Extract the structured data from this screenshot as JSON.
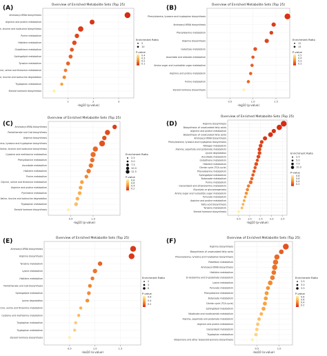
{
  "figure": {
    "panels": [
      {
        "letter": "(A)"
      },
      {
        "letter": "(B)"
      },
      {
        "letter": "(C)"
      },
      {
        "letter": "(D)"
      },
      {
        "letter": "(E)"
      },
      {
        "letter": "(F)"
      }
    ]
  },
  "colors": {
    "low": "#fff1a8",
    "mid": "#f9a03a",
    "high": "#d42a12",
    "grid": "#ececec",
    "frame": "#9a9a9a"
  },
  "chart_data": [
    {
      "type": "scatter",
      "title": "Overview of Enriched Metabolite Sets (Top 25)",
      "xlabel": "-log10 (p-value)",
      "xticks": [
        "1",
        "2",
        "3"
      ],
      "xlim": [
        0,
        3.6
      ],
      "grid": true,
      "legend_position": "right",
      "size_legend": {
        "title": "Enrichment Ratio",
        "labels": [
          "5",
          "10"
        ]
      },
      "color_legend": {
        "title": "P-value",
        "labels": [
          "0.4",
          "0.3",
          "0.2",
          "0.1"
        ]
      },
      "categories": [
        "Aminoacyl-tRNA biosynthesis",
        "Arginine and proline metabolism",
        "Valine, leucine and isoleucine biosynthesis",
        "Pyrine metabolism",
        "Histidine metabolism",
        "Glutathione metabolism",
        "Sphingolipid metabolism",
        "Tyrosine metabolism",
        "Glycine, serine and threonine metabolism",
        "Valine, leucine and isoleucine degradation",
        "Tryptophan metabolism",
        "Steroid hormone biosynthesis"
      ],
      "x": [
        3.35,
        1.95,
        1.5,
        1.35,
        1.25,
        1.15,
        1.1,
        1.0,
        0.9,
        0.85,
        0.75,
        0.45
      ],
      "size": [
        9,
        7,
        8,
        6,
        6,
        5,
        5,
        5,
        4,
        4,
        3,
        3
      ],
      "p_value": [
        0.001,
        0.02,
        0.03,
        0.05,
        0.06,
        0.08,
        0.09,
        0.1,
        0.14,
        0.16,
        0.2,
        0.4
      ]
    },
    {
      "type": "scatter",
      "title": "Overview of Enriched Metabolite Sets (Top 25)",
      "xlabel": "-log10 (p-value)",
      "xticks": [
        "0.5",
        "1.0",
        "1.5"
      ],
      "xlim": [
        0,
        1.8
      ],
      "grid": true,
      "legend_position": "right",
      "size_legend": {
        "title": "Enrichment Ratio",
        "labels": [
          "12",
          "15"
        ]
      },
      "color_legend": {
        "title": "P-value",
        "labels": [
          "0.5",
          "0.4",
          "0.3",
          "0.2"
        ]
      },
      "categories": [
        "Phenylalanine, tyrosine and tryptophan biosynthesis",
        "Aminoacyl-tRNA biosynthesis",
        "Phenylalanine metabolism",
        "Arginine biosynthesis",
        "Galactose metabolism",
        "Ascorbate and aldarate metabolism",
        "Amino sugar and nucleotide sugar metabolism",
        "Arginine and proline metabolism",
        "Purine metabolism",
        "Steroid hormone biosynthesis"
      ],
      "x": [
        1.75,
        1.45,
        1.4,
        1.3,
        1.05,
        1.0,
        0.98,
        0.95,
        0.9,
        0.8
      ],
      "size": [
        8,
        5,
        4,
        5,
        4,
        3,
        3,
        3,
        3,
        2
      ],
      "p_value": [
        0.02,
        0.04,
        0.05,
        0.06,
        0.09,
        0.1,
        0.11,
        0.12,
        0.13,
        0.5
      ]
    },
    {
      "type": "scatter",
      "title": "Overview of Enriched Metabolite Sets (Top 25)",
      "xlabel": "-log10 (p-value)",
      "xticks": [
        "0.5",
        "1.0"
      ],
      "xlim": [
        0,
        1.6
      ],
      "grid": true,
      "legend_position": "right",
      "size_legend": {
        "title": "Enrichment Ratio",
        "labels": [
          "2.5",
          "5.0",
          "7.5",
          "10.0",
          "12.5"
        ]
      },
      "color_legend": {
        "title": "P-value",
        "labels": [
          "0.8",
          "0.6",
          "0.4",
          "0.2"
        ]
      },
      "categories": [
        "Aminoacyl-tRNA biosynthesis",
        "Pantothenate and CoA biosynthesis",
        "Arginine biosynthesis",
        "Phenylalanine, tyrosine and tryptophan biosynthesis",
        "Valine, leucine and isoleucine biosynthesis",
        "Cysteine and methionine metabolism",
        "Phenylalanine metabolism",
        "Ascorbate metabolism",
        "Histidine metabolism",
        "Purine metabolism",
        "Glycine, serine and threonine metabolism",
        "Arginine and proline metabolism",
        "Pyrimidine metabolism",
        "Valine, leucine and isoleucine degradation",
        "Tryptophan metabolism",
        "Steroid hormone biosynthesis"
      ],
      "x": [
        1.48,
        1.32,
        1.25,
        1.2,
        1.05,
        1.0,
        0.98,
        0.95,
        0.9,
        0.85,
        0.75,
        0.72,
        0.7,
        0.65,
        0.62,
        0.45
      ],
      "size": [
        4,
        5,
        4,
        6,
        5,
        5,
        4,
        4,
        4,
        3,
        3,
        3,
        3,
        3,
        3,
        2
      ],
      "p_value": [
        0.03,
        0.05,
        0.06,
        0.06,
        0.09,
        0.1,
        0.1,
        0.11,
        0.12,
        0.14,
        0.18,
        0.19,
        0.2,
        0.22,
        0.24,
        0.35
      ]
    },
    {
      "type": "scatter",
      "title": "Overview of Enriched Metabolite Sets (Top 25)",
      "xlabel": "-log10 (p-value)",
      "xticks": [
        "0.5",
        "1.0",
        "1.5",
        "2.0",
        "2.5"
      ],
      "xlim": [
        0,
        2.7
      ],
      "grid": true,
      "legend_position": "right",
      "size_legend": {
        "title": "Enrichment Ratio",
        "labels": [
          "2.5",
          "5.0",
          "7.5",
          "10.0"
        ]
      },
      "color_legend": {
        "title": "P-value",
        "labels": [
          "0.8",
          "0.6",
          "0.4",
          "0.2"
        ]
      },
      "categories": [
        "Arginine biosynthesis",
        "Biosynthesis of unsaturated fatty acids",
        "Arginine and proline metabolism",
        "Biosynthesis of unsaturated fatty acids",
        "Aminoacyl-tRNA biosynthesis",
        "Phenylalanine, tyrosine and tryptophan biosynthesis",
        "Nitrogen metabolism",
        "Alanine, aspartate and glutamate metabolism",
        "Lysine degradation",
        "Ascorbate metabolism",
        "Glutathione metabolism",
        "Histidine metabolism",
        "Citrate cycle (TCA cycle)",
        "Phenylalanine metabolism",
        "Sphingolipid metabolism",
        "Butanoate metabolism",
        "Purine metabolism",
        "Glycerolipid and ethanolamine metabolism",
        "Glycolysis or gluconeogenesis",
        "Amino sugar and nucleotide sugar metabolism",
        "Pyruvate metabolism",
        "Arginine and proline metabolism",
        "Fatty acid biosynthesis",
        "Tyrosine metabolism",
        "Steroid hormone biosynthesis"
      ],
      "x": [
        2.55,
        2.35,
        2.1,
        1.95,
        1.7,
        1.55,
        1.5,
        1.45,
        1.45,
        1.4,
        1.35,
        1.3,
        1.25,
        1.2,
        1.15,
        1.1,
        1.05,
        0.95,
        0.9,
        0.85,
        0.8,
        0.75,
        0.7,
        0.65,
        0.5
      ],
      "size": [
        8,
        7,
        5,
        6,
        5,
        4,
        4,
        4,
        4,
        4,
        3,
        4,
        3,
        3,
        3,
        3,
        4,
        3,
        3,
        3,
        2,
        2,
        2,
        2,
        2
      ],
      "p_value": [
        0.003,
        0.005,
        0.008,
        0.01,
        0.02,
        0.03,
        0.03,
        0.04,
        0.04,
        0.04,
        0.05,
        0.05,
        0.06,
        0.06,
        0.07,
        0.08,
        0.09,
        0.11,
        0.12,
        0.14,
        0.16,
        0.18,
        0.2,
        0.22,
        0.32
      ]
    },
    {
      "type": "scatter",
      "title": "Overview of Enriched Metabolite Sets (Top 25)",
      "xlabel": "-log10 (p-value)",
      "xticks": [
        "0.5",
        "1.0",
        "1.5"
      ],
      "xlim": [
        0,
        1.9
      ],
      "grid": true,
      "legend_position": "right",
      "size_legend": {
        "title": "Enrichment Ratio",
        "labels": [
          "2",
          "4",
          "6"
        ]
      },
      "color_legend": {
        "title": "P-value",
        "labels": [
          "0.6",
          "0.4",
          "0.2"
        ]
      },
      "categories": [
        "Aminoacyl-tRNA biosynthesis",
        "Arginine biosynthesis",
        "Tyrosine metabolism",
        "Lysine metabolism",
        "Histidine metabolism",
        "Pantothenate and CoA biosynthesis",
        "Sphingolipid metabolism",
        "Lysine degradation",
        "Glycine, serine and threonine metabolism",
        "Cysteine and methionine metabolism",
        "Tryptophan metabolism",
        "Tryptophan metabolism",
        "Steroid hormone biosynthesis"
      ],
      "x": [
        1.75,
        1.72,
        1.1,
        1.0,
        0.95,
        0.9,
        0.88,
        0.85,
        0.72,
        0.68,
        0.62,
        0.6,
        0.5
      ],
      "size": [
        6,
        6,
        4,
        4,
        3,
        3,
        3,
        3,
        2,
        2,
        2,
        2,
        2
      ],
      "p_value": [
        0.02,
        0.02,
        0.08,
        0.1,
        0.11,
        0.12,
        0.13,
        0.14,
        0.19,
        0.21,
        0.24,
        0.25,
        0.32
      ]
    },
    {
      "type": "scatter",
      "title": "Overview of Enriched Metabolite Sets (Top 25)",
      "xlabel": "-log10 (p-value)",
      "xticks": [
        "0.5",
        "1.0"
      ],
      "xlim": [
        0,
        1.3
      ],
      "grid": true,
      "legend_position": "right",
      "size_legend": {
        "title": "Enrichment Ratio",
        "labels": [
          "2.5",
          "3.0",
          "3.5"
        ]
      },
      "color_legend": {
        "title": "P-value",
        "labels": [
          "0.8",
          "0.6",
          "0.4",
          "0.2"
        ]
      },
      "categories": [
        "Arginine biosynthesis",
        "Biosynthesis of unsaturated fatty acids",
        "Phenylalanine, tyrosine and tryptophan biosynthesis",
        "Riboflavin metabolism",
        "Aminoacyl-tRNA biosynthesis",
        "Histidine metabolism",
        "D-Glutamine and D-glutamate metabolism",
        "Lysine metabolism",
        "Pyruvate metabolism",
        "Phenylalanine metabolism",
        "Butanoate metabolism",
        "Citrate cycle (TCA cycle)",
        "Sphingolipid metabolism",
        "Nicotinate and nicotinamide metabolism",
        "Alanine, aspartate and glutamate metabolism",
        "Arginine and proline metabolism",
        "Glycerolipid metabolism",
        "Tryptophan metabolism",
        "Ubiquinone and other terpenoid-quinone biosynthesis"
      ],
      "x": [
        1.15,
        1.05,
        0.95,
        0.92,
        0.9,
        0.88,
        0.85,
        0.8,
        0.75,
        0.72,
        0.7,
        0.68,
        0.65,
        0.6,
        0.55,
        0.52,
        0.5,
        0.48,
        0.4
      ],
      "size": [
        7,
        5,
        6,
        6,
        6,
        5,
        5,
        5,
        4,
        4,
        4,
        4,
        4,
        3,
        3,
        3,
        3,
        3,
        2
      ],
      "p_value": [
        0.07,
        0.09,
        0.11,
        0.12,
        0.12,
        0.13,
        0.14,
        0.16,
        0.18,
        0.19,
        0.2,
        0.21,
        0.22,
        0.25,
        0.28,
        0.3,
        0.32,
        0.33,
        0.4
      ]
    }
  ]
}
